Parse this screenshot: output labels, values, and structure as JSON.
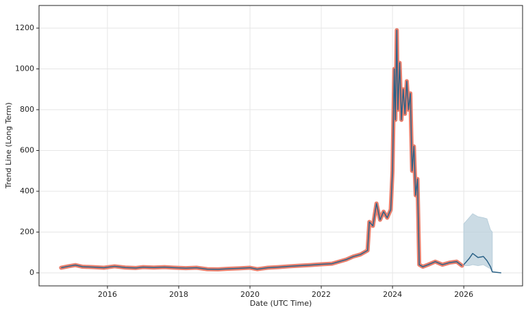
{
  "chart_data": {
    "type": "line",
    "xlabel": "Date (UTC Time)",
    "ylabel": "Trend Line (Long Term)",
    "xlim": [
      2014.08,
      2027.65
    ],
    "ylim": [
      -64,
      1311
    ],
    "xticks": [
      2016,
      2018,
      2020,
      2022,
      2024,
      2026
    ],
    "yticks": [
      0,
      200,
      400,
      600,
      800,
      1000,
      1200
    ],
    "grid": true,
    "series": [
      {
        "color": "#2b6287",
        "outline_color": "#e9806e",
        "x": [
          2014.7,
          2014.9,
          2015.1,
          2015.3,
          2015.6,
          2015.9,
          2016.2,
          2016.5,
          2016.8,
          2017.0,
          2017.3,
          2017.6,
          2017.9,
          2018.2,
          2018.5,
          2018.8,
          2019.1,
          2019.4,
          2019.7,
          2020.0,
          2020.2,
          2020.5,
          2020.8,
          2021.1,
          2021.4,
          2021.7,
          2022.0,
          2022.3,
          2022.5,
          2022.7,
          2022.9,
          2023.1,
          2023.3,
          2023.35,
          2023.45,
          2023.55,
          2023.65,
          2023.75,
          2023.85,
          2023.95,
          2024.0,
          2024.05,
          2024.08,
          2024.12,
          2024.15,
          2024.2,
          2024.25,
          2024.3,
          2024.35,
          2024.4,
          2024.45,
          2024.5,
          2024.55,
          2024.6,
          2024.65,
          2024.7,
          2024.75,
          2024.85,
          2025.0,
          2025.2,
          2025.4,
          2025.6,
          2025.8,
          2025.95
        ],
        "values": [
          25,
          32,
          38,
          30,
          28,
          25,
          32,
          26,
          24,
          28,
          26,
          28,
          25,
          23,
          25,
          18,
          17,
          20,
          22,
          25,
          18,
          25,
          28,
          32,
          35,
          38,
          42,
          45,
          55,
          65,
          80,
          90,
          110,
          250,
          230,
          340,
          260,
          300,
          270,
          310,
          500,
          1000,
          750,
          1190,
          800,
          1030,
          750,
          900,
          780,
          940,
          800,
          880,
          500,
          620,
          380,
          460,
          40,
          30,
          40,
          55,
          40,
          50,
          55,
          35
        ]
      },
      {
        "color": "#2b6287",
        "x": [
          2026.0,
          2026.15,
          2026.25,
          2026.4,
          2026.55,
          2026.65,
          2026.75,
          2026.8,
          2027.05
        ],
        "values": [
          40,
          70,
          95,
          75,
          80,
          60,
          30,
          5,
          0
        ]
      }
    ],
    "band": {
      "color": "#b9cfdb",
      "x": [
        2026.0,
        2026.15,
        2026.25,
        2026.4,
        2026.55,
        2026.65,
        2026.75,
        2026.8
      ],
      "upper": [
        240,
        270,
        290,
        275,
        270,
        265,
        210,
        200
      ],
      "lower": [
        35,
        35,
        40,
        35,
        40,
        30,
        20,
        5
      ]
    }
  }
}
